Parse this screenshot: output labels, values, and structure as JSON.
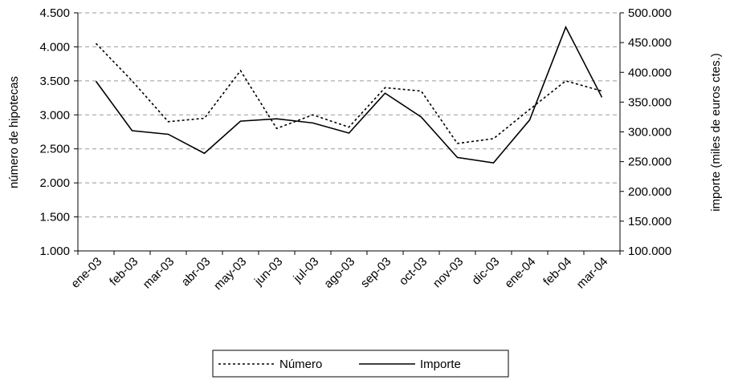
{
  "chart_data": {
    "type": "line",
    "categories": [
      "ene-03",
      "feb-03",
      "mar-03",
      "abr-03",
      "may-03",
      "jun-03",
      "jul-03",
      "ago-03",
      "sep-03",
      "oct-03",
      "nov-03",
      "dic-03",
      "ene-04",
      "feb-04",
      "mar-04"
    ],
    "series": [
      {
        "name": "Número",
        "color": "#000000",
        "dash": true,
        "values": [
          4050,
          3500,
          2900,
          2950,
          3650,
          2800,
          3000,
          2820,
          3400,
          3350,
          2580,
          2650,
          3080,
          3500,
          3350
        ]
      },
      {
        "name": "Importe",
        "color": "#000000",
        "axis": "y2",
        "values": [
          385000,
          302000,
          296000,
          264000,
          318000,
          322000,
          315000,
          298000,
          365000,
          325000,
          257000,
          248000,
          320000,
          476000,
          358000
        ]
      }
    ],
    "y_label": "número de hipotecas",
    "y2_label": "importe (miles de euros ctes.)",
    "ylim": [
      1000,
      4500
    ],
    "yticks": [
      {
        "value": 1000,
        "label": "1.000"
      },
      {
        "value": 1500,
        "label": "1.500"
      },
      {
        "value": 2000,
        "label": "2.000"
      },
      {
        "value": 2500,
        "label": "2.500"
      },
      {
        "value": 3000,
        "label": "3.000"
      },
      {
        "value": 3500,
        "label": "3.500"
      },
      {
        "value": 4000,
        "label": "4.000"
      },
      {
        "value": 4500,
        "label": "4.500"
      }
    ],
    "y2lim": [
      100000,
      500000
    ],
    "y2ticks": [
      {
        "value": 100000,
        "label": "100.000"
      },
      {
        "value": 150000,
        "label": "150.000"
      },
      {
        "value": 200000,
        "label": "200.000"
      },
      {
        "value": 250000,
        "label": "250.000"
      },
      {
        "value": 300000,
        "label": "300.000"
      },
      {
        "value": 350000,
        "label": "350.000"
      },
      {
        "value": 400000,
        "label": "400.000"
      },
      {
        "value": 450000,
        "label": "450.000"
      },
      {
        "value": 500000,
        "label": "500.000"
      }
    ],
    "grid": true,
    "legend": "bottom"
  }
}
